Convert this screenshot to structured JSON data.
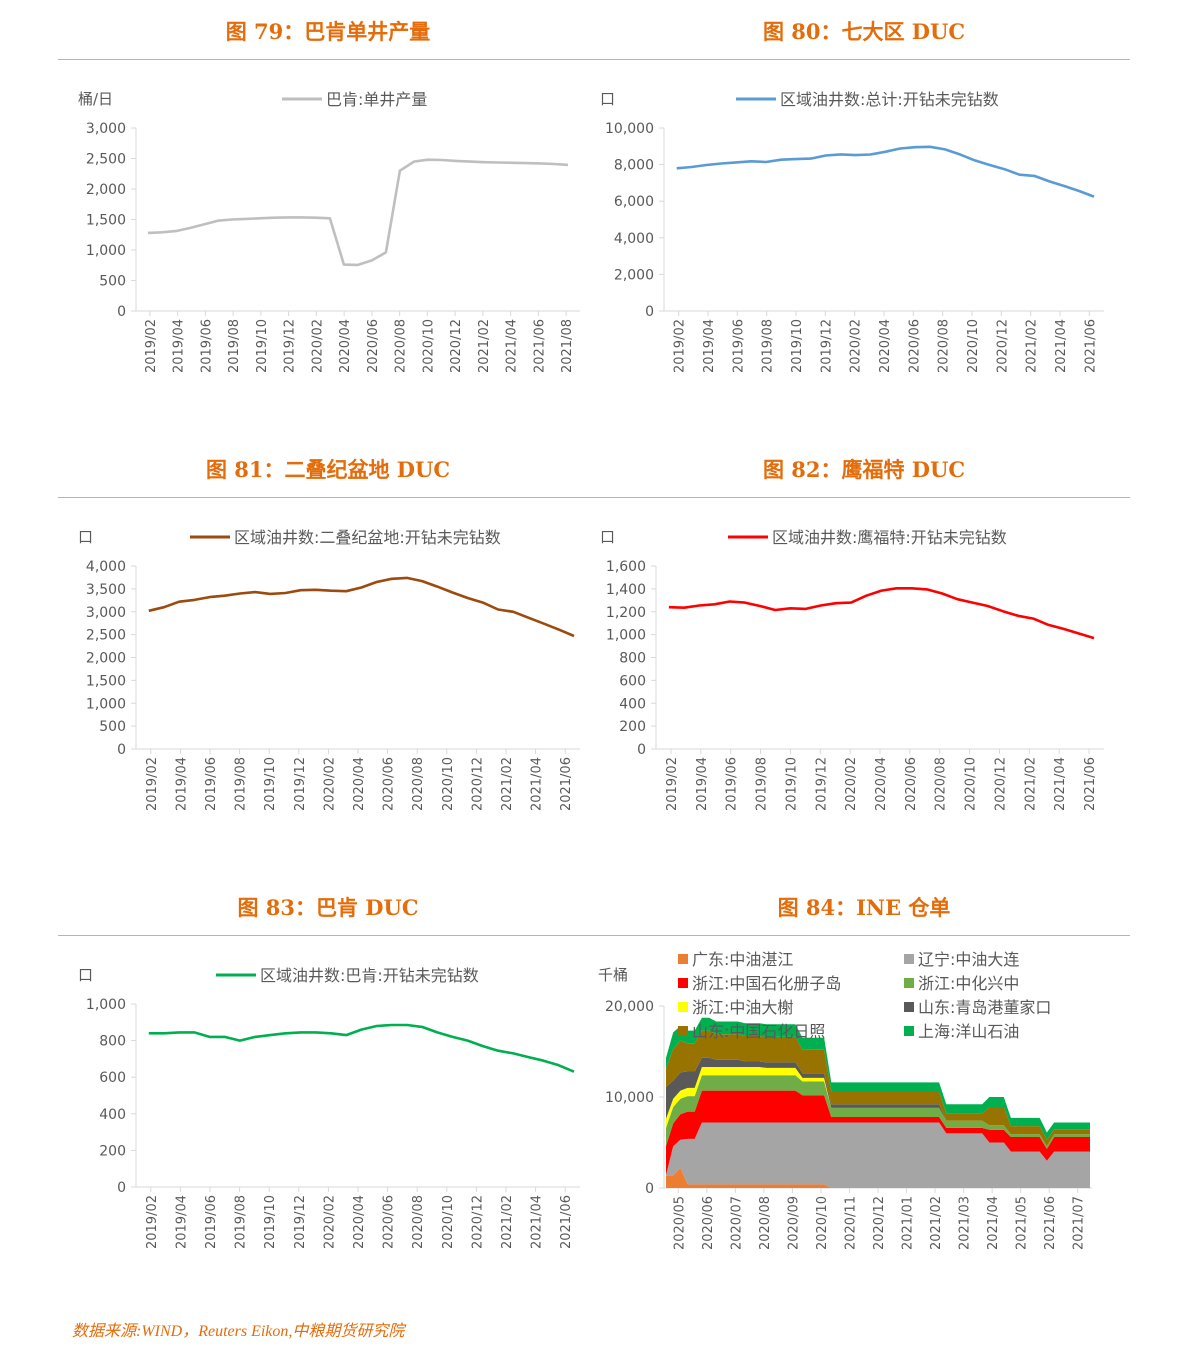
{
  "source": "数据来源:WIND，Reuters Eikon,中粮期货研究院",
  "colors": {
    "title": "#e46c0a",
    "rule": "#f0a765",
    "axis_text": "#595959",
    "grid_axis": "#d9d9d9"
  },
  "figures": [
    {
      "title": "图 79：巴肯单井产量"
    },
    {
      "title": "图 80：七大区 DUC"
    },
    {
      "title": "图 81：二叠纪盆地 DUC"
    },
    {
      "title": "图 82：鹰福特 DUC"
    },
    {
      "title": "图 83：巴肯 DUC"
    },
    {
      "title": "图 84：INE 仓单"
    }
  ],
  "chart_data": [
    {
      "type": "line",
      "unit_label": "桶/日",
      "ylim": [
        0,
        3000
      ],
      "yticks": [
        0,
        500,
        1000,
        1500,
        2000,
        2500,
        3000
      ],
      "ytick_labels": [
        "0",
        "500",
        "1,000",
        "1,500",
        "2,000",
        "2,500",
        "3,000"
      ],
      "xticks": [
        "2019/02",
        "2019/04",
        "2019/06",
        "2019/08",
        "2019/10",
        "2019/12",
        "2020/02",
        "2020/04",
        "2020/06",
        "2020/08",
        "2020/10",
        "2020/12",
        "2021/02",
        "2021/04",
        "2021/06",
        "2021/08"
      ],
      "series": [
        {
          "name": "巴肯:单井产量",
          "color": "#bfbfbf",
          "values": [
            1280,
            1290,
            1310,
            1360,
            1420,
            1480,
            1500,
            1510,
            1520,
            1530,
            1535,
            1535,
            1530,
            1520,
            760,
            755,
            830,
            960,
            2300,
            2450,
            2480,
            2475,
            2460,
            2450,
            2440,
            2435,
            2430,
            2425,
            2420,
            2410,
            2395
          ]
        }
      ]
    },
    {
      "type": "line",
      "unit_label": "口",
      "ylim": [
        0,
        10000
      ],
      "yticks": [
        0,
        2000,
        4000,
        6000,
        8000,
        10000
      ],
      "ytick_labels": [
        "0",
        "2,000",
        "4,000",
        "6,000",
        "8,000",
        "10,000"
      ],
      "xticks": [
        "2019/02",
        "2019/04",
        "2019/06",
        "2019/08",
        "2019/10",
        "2019/12",
        "2020/02",
        "2020/04",
        "2020/06",
        "2020/08",
        "2020/10",
        "2020/12",
        "2021/02",
        "2021/04",
        "2021/06"
      ],
      "series": [
        {
          "name": "区域油井数:总计:开钻未完钻数",
          "color": "#5b9bd5",
          "values": [
            7800,
            7870,
            7980,
            8060,
            8120,
            8180,
            8140,
            8270,
            8300,
            8330,
            8500,
            8560,
            8520,
            8550,
            8700,
            8880,
            8950,
            8970,
            8830,
            8560,
            8230,
            7980,
            7750,
            7450,
            7380,
            7080,
            6830,
            6560,
            6250
          ]
        }
      ]
    },
    {
      "type": "line",
      "unit_label": "口",
      "ylim": [
        0,
        4000
      ],
      "yticks": [
        0,
        500,
        1000,
        1500,
        2000,
        2500,
        3000,
        3500,
        4000
      ],
      "ytick_labels": [
        "0",
        "500",
        "1,000",
        "1,500",
        "2,000",
        "2,500",
        "3,000",
        "3,500",
        "4,000"
      ],
      "xticks": [
        "2019/02",
        "2019/04",
        "2019/06",
        "2019/08",
        "2019/10",
        "2019/12",
        "2020/02",
        "2020/04",
        "2020/06",
        "2020/08",
        "2020/10",
        "2020/12",
        "2021/02",
        "2021/04",
        "2021/06"
      ],
      "series": [
        {
          "name": "区域油井数:二叠纪盆地:开钻未完钻数",
          "color": "#9c4a0d",
          "values": [
            3020,
            3100,
            3220,
            3260,
            3320,
            3350,
            3400,
            3430,
            3390,
            3410,
            3470,
            3480,
            3460,
            3450,
            3530,
            3650,
            3720,
            3740,
            3670,
            3550,
            3420,
            3300,
            3200,
            3050,
            3000,
            2870,
            2740,
            2610,
            2470
          ]
        }
      ]
    },
    {
      "type": "line",
      "unit_label": "口",
      "ylim": [
        0,
        1600
      ],
      "yticks": [
        0,
        200,
        400,
        600,
        800,
        1000,
        1200,
        1400,
        1600
      ],
      "ytick_labels": [
        "0",
        "200",
        "400",
        "600",
        "800",
        "1,000",
        "1,200",
        "1,400",
        "1,600"
      ],
      "xticks": [
        "2019/02",
        "2019/04",
        "2019/06",
        "2019/08",
        "2019/10",
        "2019/12",
        "2020/02",
        "2020/04",
        "2020/06",
        "2020/08",
        "2020/10",
        "2020/12",
        "2021/02",
        "2021/04",
        "2021/06"
      ],
      "series": [
        {
          "name": "区域油井数:鹰福特:开钻未完钻数",
          "color": "#ff0000",
          "values": [
            1240,
            1235,
            1255,
            1265,
            1290,
            1280,
            1250,
            1215,
            1230,
            1225,
            1255,
            1275,
            1280,
            1340,
            1385,
            1405,
            1405,
            1395,
            1360,
            1310,
            1280,
            1250,
            1205,
            1165,
            1140,
            1085,
            1050,
            1010,
            970
          ]
        }
      ]
    },
    {
      "type": "line",
      "unit_label": "口",
      "ylim": [
        0,
        1000
      ],
      "yticks": [
        0,
        200,
        400,
        600,
        800,
        1000
      ],
      "ytick_labels": [
        "0",
        "200",
        "400",
        "600",
        "800",
        "1,000"
      ],
      "xticks": [
        "2019/02",
        "2019/04",
        "2019/06",
        "2019/08",
        "2019/10",
        "2019/12",
        "2020/02",
        "2020/04",
        "2020/06",
        "2020/08",
        "2020/10",
        "2020/12",
        "2021/02",
        "2021/04",
        "2021/06"
      ],
      "series": [
        {
          "name": "区域油井数:巴肯:开钻未完钻数",
          "color": "#00b050",
          "values": [
            840,
            840,
            845,
            845,
            820,
            820,
            800,
            820,
            830,
            840,
            845,
            845,
            840,
            830,
            860,
            880,
            885,
            885,
            875,
            845,
            820,
            800,
            770,
            745,
            730,
            710,
            690,
            665,
            630
          ]
        }
      ]
    },
    {
      "type": "area",
      "stacked": true,
      "unit_label": "千桶",
      "ylim": [
        0,
        20000
      ],
      "yticks": [
        0,
        10000,
        20000
      ],
      "ytick_labels": [
        "0",
        "10,000",
        "20,000"
      ],
      "xticks": [
        "2020/05",
        "2020/06",
        "2020/07",
        "2020/08",
        "2020/09",
        "2020/10",
        "2020/11",
        "2020/12",
        "2021/01",
        "2021/02",
        "2021/03",
        "2021/04",
        "2021/05",
        "2021/06",
        "2021/07"
      ],
      "series": [
        {
          "name": "广东:中油湛江",
          "color": "#ed7d31",
          "values": [
            1400,
            1400,
            2200,
            400,
            400,
            400,
            400,
            400,
            400,
            400,
            400,
            400,
            400,
            400,
            400,
            400,
            400,
            400,
            400,
            400,
            400,
            400,
            400,
            0,
            0,
            0,
            0,
            0,
            0,
            0,
            0,
            0,
            0,
            0,
            0,
            0,
            0,
            0,
            0,
            0,
            0,
            0,
            0,
            0,
            0,
            0,
            0,
            0,
            0,
            0,
            0,
            0,
            0,
            0,
            0,
            0,
            0,
            0,
            0,
            0
          ]
        },
        {
          "name": "辽宁:中油大连",
          "color": "#a5a5a5",
          "values": [
            0,
            3200,
            3100,
            5000,
            5000,
            6800,
            6800,
            6800,
            6800,
            6800,
            6800,
            6800,
            6800,
            6800,
            6800,
            6800,
            6800,
            6800,
            6800,
            6800,
            6800,
            6800,
            6800,
            7200,
            7200,
            7200,
            7200,
            7200,
            7200,
            7200,
            7200,
            7200,
            7200,
            7200,
            7200,
            7200,
            7200,
            7200,
            7200,
            6000,
            6000,
            6000,
            6000,
            6000,
            6000,
            5000,
            5000,
            5000,
            4000,
            4000,
            4000,
            4000,
            4000,
            3000,
            4000,
            4000,
            4000,
            4000,
            4000,
            4000
          ]
        },
        {
          "name": "浙江:中国石化册子岛",
          "color": "#ff0000",
          "values": [
            3200,
            2500,
            2800,
            3000,
            3000,
            3500,
            3500,
            3500,
            3500,
            3500,
            3500,
            3500,
            3500,
            3500,
            3500,
            3500,
            3500,
            3500,
            3500,
            3000,
            3000,
            3000,
            3000,
            600,
            600,
            600,
            600,
            600,
            600,
            600,
            600,
            600,
            600,
            600,
            600,
            600,
            600,
            600,
            600,
            600,
            600,
            600,
            600,
            600,
            600,
            1400,
            1400,
            1400,
            1600,
            1600,
            1600,
            1600,
            1600,
            1300,
            1600,
            1600,
            1600,
            1600,
            1600,
            1600
          ]
        },
        {
          "name": "浙江:中化兴中",
          "color": "#70ad47",
          "values": [
            2000,
            1800,
            1700,
            1700,
            1700,
            1700,
            1700,
            1700,
            1700,
            1700,
            1700,
            1700,
            1700,
            1700,
            1700,
            1700,
            1700,
            1700,
            1700,
            1500,
            1500,
            1500,
            1500,
            1000,
            1000,
            1000,
            1000,
            1000,
            1000,
            1000,
            1000,
            1000,
            1000,
            1000,
            1000,
            1000,
            1000,
            1000,
            1000,
            800,
            800,
            800,
            800,
            800,
            800,
            500,
            500,
            500,
            300,
            300,
            300,
            300,
            300,
            300,
            300,
            300,
            300,
            300,
            300,
            300
          ]
        },
        {
          "name": "浙江:中油大榭",
          "color": "#ffff00",
          "values": [
            1000,
            900,
            900,
            900,
            900,
            900,
            900,
            900,
            900,
            900,
            900,
            900,
            900,
            900,
            800,
            800,
            800,
            800,
            800,
            400,
            400,
            400,
            400,
            0,
            0,
            0,
            0,
            0,
            0,
            0,
            0,
            0,
            0,
            0,
            0,
            0,
            0,
            0,
            0,
            0,
            0,
            0,
            0,
            0,
            0,
            0,
            0,
            0,
            0,
            0,
            0,
            0,
            0,
            0,
            0,
            0,
            0,
            0,
            0,
            0
          ]
        },
        {
          "name": "山东:青岛港董家口",
          "color": "#595959",
          "values": [
            3500,
            2000,
            2000,
            1800,
            1800,
            1000,
            1000,
            800,
            800,
            800,
            800,
            600,
            600,
            600,
            600,
            600,
            600,
            600,
            600,
            500,
            500,
            500,
            500,
            400,
            400,
            400,
            400,
            400,
            400,
            400,
            400,
            400,
            400,
            400,
            400,
            400,
            400,
            400,
            400,
            0,
            0,
            0,
            0,
            0,
            0,
            0,
            0,
            0,
            0,
            0,
            0,
            0,
            0,
            0,
            0,
            0,
            0,
            0,
            0,
            0
          ]
        },
        {
          "name": "山东:中国石化日照",
          "color": "#997300",
          "values": [
            2000,
            3500,
            3500,
            3100,
            3100,
            3000,
            3000,
            2800,
            2800,
            2800,
            2800,
            2800,
            2800,
            2800,
            2800,
            2800,
            2800,
            2800,
            2800,
            2600,
            2600,
            2600,
            2600,
            1400,
            1400,
            1400,
            1400,
            1400,
            1400,
            1400,
            1400,
            1400,
            1400,
            1400,
            1400,
            1400,
            1400,
            1400,
            1400,
            800,
            800,
            800,
            800,
            800,
            800,
            2000,
            2000,
            2000,
            900,
            900,
            900,
            900,
            900,
            700,
            500,
            500,
            500,
            500,
            500,
            500
          ]
        },
        {
          "name": "上海:洋山石油",
          "color": "#00b050",
          "values": [
            1200,
            1800,
            1600,
            1400,
            1400,
            1400,
            1400,
            1400,
            1400,
            1400,
            1400,
            1400,
            1400,
            1400,
            1400,
            1400,
            1400,
            1400,
            1400,
            1300,
            1300,
            1300,
            1300,
            1000,
            1000,
            1000,
            1000,
            1000,
            1000,
            1000,
            1000,
            1000,
            1000,
            1000,
            1000,
            1000,
            1000,
            1000,
            1000,
            1000,
            1000,
            1000,
            1000,
            1000,
            1000,
            1100,
            1100,
            1100,
            900,
            900,
            900,
            900,
            900,
            800,
            800,
            800,
            800,
            800,
            800,
            800
          ]
        }
      ]
    }
  ]
}
